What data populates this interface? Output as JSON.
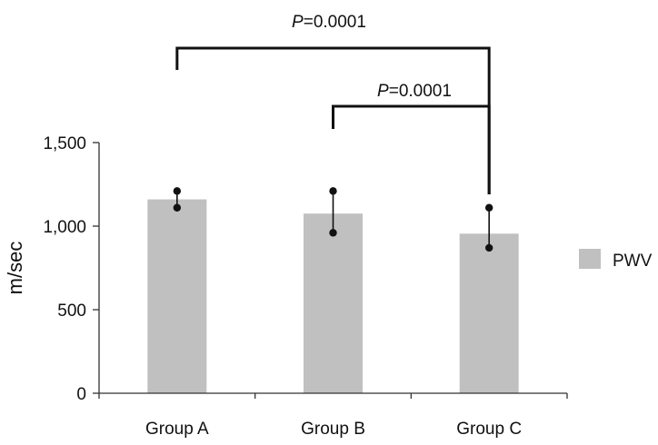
{
  "chart_data": {
    "type": "bar",
    "title": "",
    "xlabel": "",
    "ylabel": "m/sec",
    "ylim": [
      0,
      1500
    ],
    "yticks": [
      {
        "value": 0,
        "label": "0"
      },
      {
        "value": 500,
        "label": "500"
      },
      {
        "value": 1000,
        "label": "1,000"
      },
      {
        "value": 1500,
        "label": "1,500"
      }
    ],
    "categories": [
      "Group A",
      "Group B",
      "Group C"
    ],
    "series": [
      {
        "name": "PWV",
        "values": [
          1160,
          1075,
          955
        ],
        "error_upper": [
          1210,
          1210,
          1110
        ],
        "error_lower": [
          1110,
          960,
          870
        ],
        "color": "#c0c0c0"
      }
    ],
    "legend": {
      "position": "right",
      "label": "PWV"
    },
    "grid": false,
    "annotations": [
      {
        "type": "significance",
        "from": "Group A",
        "to": "Group C",
        "p_symbol": "P",
        "p_value": "=0.0001"
      },
      {
        "type": "significance",
        "from": "Group B",
        "to": "Group C",
        "p_symbol": "P",
        "p_value": "=0.0001"
      }
    ]
  }
}
